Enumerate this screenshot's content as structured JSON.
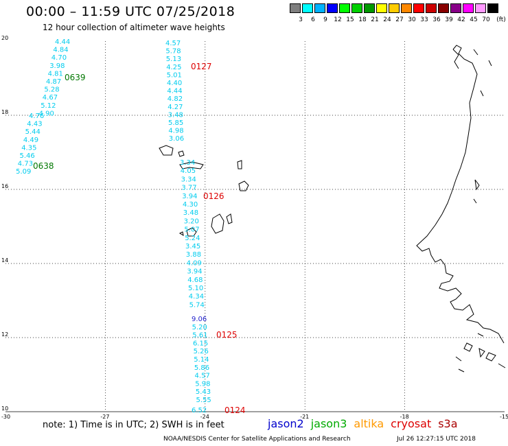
{
  "title": "00:00 – 11:59 UTC 07/25/2018",
  "subtitle": "12 hour collection of altimeter wave heights",
  "legend": {
    "unit": "(ft)",
    "bins": [
      {
        "label": "3",
        "color": "#7f7f7f"
      },
      {
        "label": "6",
        "color": "#00ffff"
      },
      {
        "label": "9",
        "color": "#00b2ff"
      },
      {
        "label": "12",
        "color": "#0000ff"
      },
      {
        "label": "15",
        "color": "#00ff00"
      },
      {
        "label": "18",
        "color": "#00d000"
      },
      {
        "label": "21",
        "color": "#009900"
      },
      {
        "label": "24",
        "color": "#ffff00"
      },
      {
        "label": "27",
        "color": "#ffcc00"
      },
      {
        "label": "30",
        "color": "#ff8800"
      },
      {
        "label": "33",
        "color": "#ff0000"
      },
      {
        "label": "36",
        "color": "#cc0000"
      },
      {
        "label": "39",
        "color": "#880000"
      },
      {
        "label": "42",
        "color": "#880088"
      },
      {
        "label": "45",
        "color": "#ff00ff"
      },
      {
        "label": "70",
        "color": "#ff99ff"
      },
      {
        "label": "",
        "color": "#000000"
      }
    ]
  },
  "map": {
    "lon_range": [
      -30,
      -15
    ],
    "lat_range": [
      10,
      20
    ],
    "lon_ticks": [
      "-30",
      "-27",
      "-24",
      "-21",
      "-18",
      "-15"
    ],
    "lat_ticks": [
      "20",
      "18",
      "16",
      "14",
      "12",
      "10"
    ]
  },
  "tracks": [
    {
      "pass_label": "0639",
      "pass_color": "#007700",
      "values": [
        "4.44",
        "4.84",
        "4.70",
        "3.98",
        "4.81",
        "4.87",
        "5.28",
        "4.67",
        "5.12",
        "4.90"
      ]
    },
    {
      "pass_label": "0638",
      "pass_color": "#007700",
      "values": [
        "4.76",
        "4.43",
        "5.44",
        "4.49",
        "4.35",
        "5.46",
        "4.73",
        "5.09"
      ]
    },
    {
      "pass_label": "0127",
      "pass_color": "#dd0000",
      "values": [
        "4.57",
        "5.78",
        "5.13",
        "4.25",
        "5.01",
        "4.40",
        "4.44",
        "4.82",
        "4.27",
        "3.48",
        "5.85",
        "4.98",
        "3.06"
      ]
    },
    {
      "pass_label": "0126",
      "pass_color": "#dd0000",
      "values": [
        "3.34",
        "4.05",
        "3.34",
        "3.77",
        "3.94",
        "4.30",
        "3.48",
        "3.20",
        "5.07",
        "5.24",
        "3.45",
        "3.88",
        "4.09",
        "3.94",
        "4.68",
        "5.10",
        "4.34",
        "5.74"
      ]
    },
    {
      "pass_label": "0125",
      "pass_color": "#dd0000",
      "values": [
        "9.06",
        "5.20",
        "5.61",
        "6.15",
        "5.26",
        "5.14",
        "5.86",
        "4.57",
        "5.98",
        "5.43",
        "5.55"
      ]
    },
    {
      "pass_label": "0124",
      "pass_color": "#dd0000",
      "values": [
        "6.52"
      ]
    }
  ],
  "note": "note: 1) Time is in UTC; 2) SWH is in feet",
  "satellites": [
    {
      "name": "jason2",
      "color": "#0000cc"
    },
    {
      "name": "jason3",
      "color": "#00aa00"
    },
    {
      "name": "altika",
      "color": "#ff9900"
    },
    {
      "name": "cryosat",
      "color": "#dd0000"
    },
    {
      "name": "s3a",
      "color": "#aa0000"
    }
  ],
  "credit": "NOAA/NESDIS Center for Satellite Applications and Research",
  "timestamp": "Jul 26 12:27:15 UTC 2018"
}
